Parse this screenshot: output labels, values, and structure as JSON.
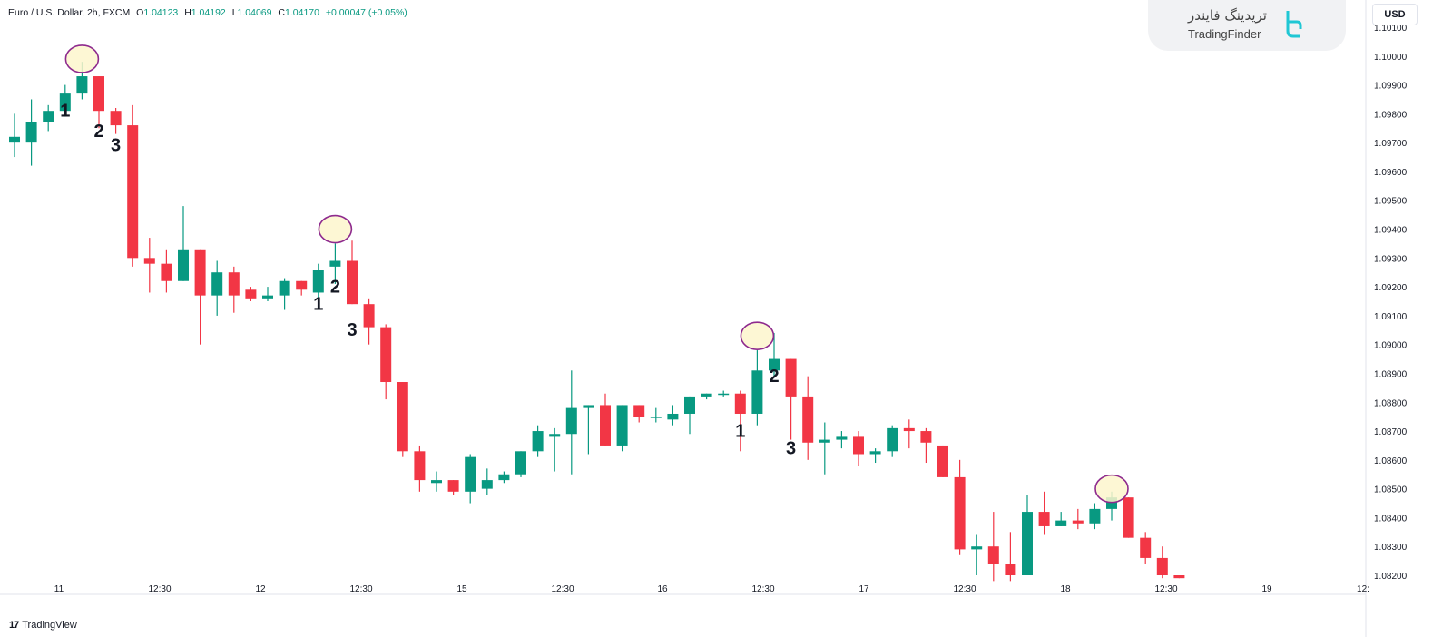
{
  "header": {
    "symbol": "Euro / U.S. Dollar, 2h, FXCM",
    "o_label": "O",
    "o_value": "1.04123",
    "h_label": "H",
    "h_value": "1.04192",
    "l_label": "L",
    "l_value": "1.04069",
    "c_label": "C",
    "c_value": "1.04170",
    "change": "+0.00047 (+0.05%)"
  },
  "currency_button": "USD",
  "brand": {
    "name_fa": "تریدینگ فایندر",
    "name_en": "TradingFinder"
  },
  "footer": {
    "logo": "17",
    "label": "TradingView"
  },
  "colors": {
    "up": "#089981",
    "down": "#f23645",
    "highlight_fill": "#fdf6cc",
    "highlight_stroke": "#8e2a8e"
  },
  "chart_data": {
    "type": "candlestick",
    "y_range": [
      1.0815,
      1.1015
    ],
    "y_ticks": [
      "1.10100",
      "1.10000",
      "1.09900",
      "1.09800",
      "1.09700",
      "1.09600",
      "1.09500",
      "1.09400",
      "1.09300",
      "1.09200",
      "1.09100",
      "1.09000",
      "1.08900",
      "1.08800",
      "1.08700",
      "1.08600",
      "1.08500",
      "1.08400",
      "1.08300",
      "1.08200"
    ],
    "x_ticks": [
      "11",
      "12:30",
      "12",
      "12:30",
      "15",
      "12:30",
      "16",
      "12:30",
      "17",
      "12:30",
      "18",
      "12:30",
      "19",
      "12:"
    ],
    "candles": [
      [
        1.097,
        1.098,
        1.0965,
        1.0972
      ],
      [
        1.097,
        1.0985,
        1.0962,
        1.0977
      ],
      [
        1.0977,
        1.0983,
        1.0974,
        1.0981
      ],
      [
        1.0981,
        1.099,
        1.0979,
        1.0987
      ],
      [
        1.0987,
        1.0998,
        1.0985,
        1.0993
      ],
      [
        1.0993,
        1.0993,
        1.0975,
        1.0981
      ],
      [
        1.0981,
        1.0982,
        1.0973,
        1.0976
      ],
      [
        1.0976,
        1.0983,
        1.0927,
        1.093
      ],
      [
        1.093,
        1.0937,
        1.0918,
        1.0928
      ],
      [
        1.0928,
        1.0933,
        1.0918,
        1.0922
      ],
      [
        1.0922,
        1.0948,
        1.0922,
        1.0933
      ],
      [
        1.0933,
        1.0933,
        1.09,
        1.0917
      ],
      [
        1.0917,
        1.0929,
        1.091,
        1.0925
      ],
      [
        1.0925,
        1.0927,
        1.0911,
        1.0917
      ],
      [
        1.0919,
        1.092,
        1.0915,
        1.0916
      ],
      [
        1.0916,
        1.092,
        1.0915,
        1.0917
      ],
      [
        1.0917,
        1.0923,
        1.0912,
        1.0922
      ],
      [
        1.0922,
        1.0922,
        1.0917,
        1.0919
      ],
      [
        1.0918,
        1.0928,
        1.0915,
        1.0926
      ],
      [
        1.0927,
        1.0935,
        1.0921,
        1.0929
      ],
      [
        1.0929,
        1.0936,
        1.0914,
        1.0914
      ],
      [
        1.0914,
        1.0916,
        1.09,
        1.0906
      ],
      [
        1.0906,
        1.0907,
        1.0881,
        1.0887
      ],
      [
        1.0887,
        1.0887,
        1.0861,
        1.0863
      ],
      [
        1.0863,
        1.0865,
        1.0849,
        1.0853
      ],
      [
        1.0852,
        1.0856,
        1.0849,
        1.0853
      ],
      [
        1.0853,
        1.0853,
        1.0848,
        1.0849
      ],
      [
        1.0849,
        1.0862,
        1.0845,
        1.0861
      ],
      [
        1.085,
        1.0857,
        1.0848,
        1.0853
      ],
      [
        1.0853,
        1.0856,
        1.0852,
        1.0855
      ],
      [
        1.0855,
        1.0863,
        1.0854,
        1.0863
      ],
      [
        1.0863,
        1.0872,
        1.0861,
        1.087
      ],
      [
        1.0868,
        1.0871,
        1.0856,
        1.0869
      ],
      [
        1.0869,
        1.0891,
        1.0855,
        1.0878
      ],
      [
        1.0878,
        1.0879,
        1.0862,
        1.0879
      ],
      [
        1.0879,
        1.0883,
        1.0865,
        1.0865
      ],
      [
        1.0865,
        1.0879,
        1.0863,
        1.0879
      ],
      [
        1.0879,
        1.0879,
        1.0873,
        1.0875
      ],
      [
        1.0875,
        1.0878,
        1.0873,
        1.0875
      ],
      [
        1.0874,
        1.0879,
        1.0872,
        1.0876
      ],
      [
        1.0876,
        1.0882,
        1.0869,
        1.0882
      ],
      [
        1.0882,
        1.0883,
        1.0881,
        1.0883
      ],
      [
        1.0883,
        1.0884,
        1.0882,
        1.0883
      ],
      [
        1.0883,
        1.0884,
        1.0863,
        1.0876
      ],
      [
        1.0876,
        1.0898,
        1.0872,
        1.0891
      ],
      [
        1.0891,
        1.0904,
        1.0889,
        1.0895
      ],
      [
        1.0895,
        1.0895,
        1.0867,
        1.0882
      ],
      [
        1.0882,
        1.0889,
        1.086,
        1.0866
      ],
      [
        1.0866,
        1.0873,
        1.0855,
        1.0867
      ],
      [
        1.0867,
        1.087,
        1.0864,
        1.0868
      ],
      [
        1.0868,
        1.087,
        1.0858,
        1.0862
      ],
      [
        1.0862,
        1.0864,
        1.0859,
        1.0863
      ],
      [
        1.0863,
        1.0872,
        1.0861,
        1.0871
      ],
      [
        1.0871,
        1.0874,
        1.0864,
        1.087
      ],
      [
        1.087,
        1.0871,
        1.0859,
        1.0866
      ],
      [
        1.0865,
        1.0865,
        1.0854,
        1.0854
      ],
      [
        1.0854,
        1.086,
        1.0827,
        1.0829
      ],
      [
        1.0829,
        1.0834,
        1.082,
        1.083
      ],
      [
        1.083,
        1.0842,
        1.0818,
        1.0824
      ],
      [
        1.0824,
        1.0835,
        1.0818,
        1.082
      ],
      [
        1.082,
        1.0848,
        1.082,
        1.0842
      ],
      [
        1.0842,
        1.0849,
        1.0834,
        1.0837
      ],
      [
        1.0837,
        1.0842,
        1.0837,
        1.0839
      ],
      [
        1.0839,
        1.0843,
        1.0836,
        1.0838
      ],
      [
        1.0838,
        1.0845,
        1.0836,
        1.0843
      ],
      [
        1.0843,
        1.0849,
        1.0839,
        1.0847
      ],
      [
        1.0847,
        1.0847,
        1.0833,
        1.0833
      ],
      [
        1.0833,
        1.0835,
        1.0824,
        1.0826
      ],
      [
        1.0826,
        1.083,
        1.0819,
        1.082
      ],
      [
        1.082,
        1.082,
        1.0819,
        1.0819
      ]
    ],
    "highlights": [
      {
        "index": 4,
        "price": 1.0999
      },
      {
        "index": 19,
        "price": 1.094
      },
      {
        "index": 44,
        "price": 1.0903
      },
      {
        "index": 65,
        "price": 1.085
      }
    ],
    "annotations": [
      {
        "text": "1",
        "index": 3,
        "price": 1.0979
      },
      {
        "text": "2",
        "index": 5,
        "price": 1.0972
      },
      {
        "text": "3",
        "index": 6,
        "price": 1.0967
      },
      {
        "text": "1",
        "index": 18,
        "price": 1.0912
      },
      {
        "text": "2",
        "index": 19,
        "price": 1.0918
      },
      {
        "text": "3",
        "index": 20,
        "price": 1.0903
      },
      {
        "text": "2",
        "index": 45,
        "price": 1.0887
      },
      {
        "text": "1",
        "index": 43,
        "price": 1.0868
      },
      {
        "text": "3",
        "index": 46,
        "price": 1.0862
      }
    ]
  }
}
